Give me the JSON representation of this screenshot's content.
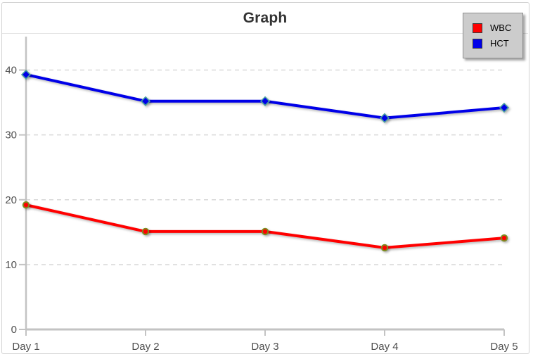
{
  "title": "Graph",
  "colors": {
    "axis": "#c3c3c3",
    "grid": "#d9d9d9",
    "tick_label": "#4f4f4f",
    "title": "#333333",
    "frame_border": "#d2d2d2",
    "legend_bg": "#cccccc",
    "legend_border": "#8e8e8e"
  },
  "chart_data": {
    "type": "line",
    "title": "Graph",
    "categories": [
      "Day 1",
      "Day 2",
      "Day 3",
      "Day 4",
      "Day 5"
    ],
    "series": [
      {
        "name": "WBC",
        "color": "#ff0000",
        "marker": "circle",
        "marker_stroke": "#7c8c20",
        "values": [
          19.2,
          15.1,
          15.1,
          12.6,
          14.1
        ]
      },
      {
        "name": "HCT",
        "color": "#0000e8",
        "marker": "diamond",
        "marker_stroke": "#4aa0a0",
        "values": [
          39.3,
          35.2,
          35.2,
          32.6,
          34.2
        ]
      }
    ],
    "xlabel": "",
    "ylabel": "",
    "ylim": [
      0,
      40
    ],
    "yticks": [
      0,
      10,
      20,
      30,
      40
    ],
    "grid": true,
    "legend_position": "top-right",
    "legend": [
      "WBC",
      "HCT"
    ]
  }
}
